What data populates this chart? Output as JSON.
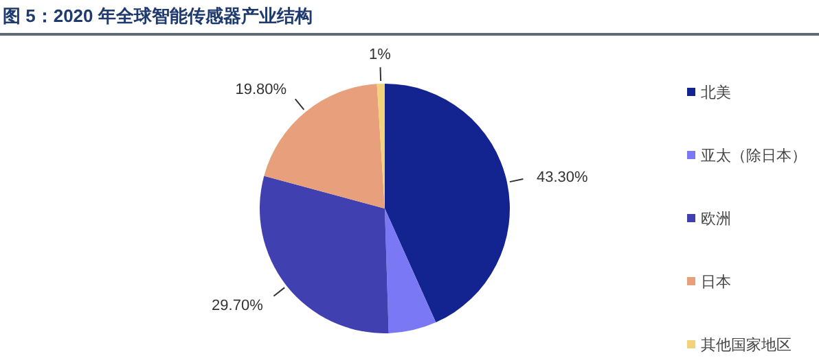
{
  "chart_data": {
    "type": "pie",
    "title": "图 5：2020 年全球智能传感器产业结构",
    "categories": [
      "北美",
      "亚太（除日本）",
      "欧洲",
      "日本",
      "其他国家地区"
    ],
    "values": [
      43.3,
      6.2,
      29.7,
      19.8,
      1
    ],
    "colors": [
      "#13238f",
      "#7b78f5",
      "#4140b0",
      "#e8a07c",
      "#f2d27a"
    ],
    "value_labels": [
      "43.30%",
      null,
      "29.70%",
      "19.80%",
      "1%"
    ],
    "legend": "right"
  }
}
